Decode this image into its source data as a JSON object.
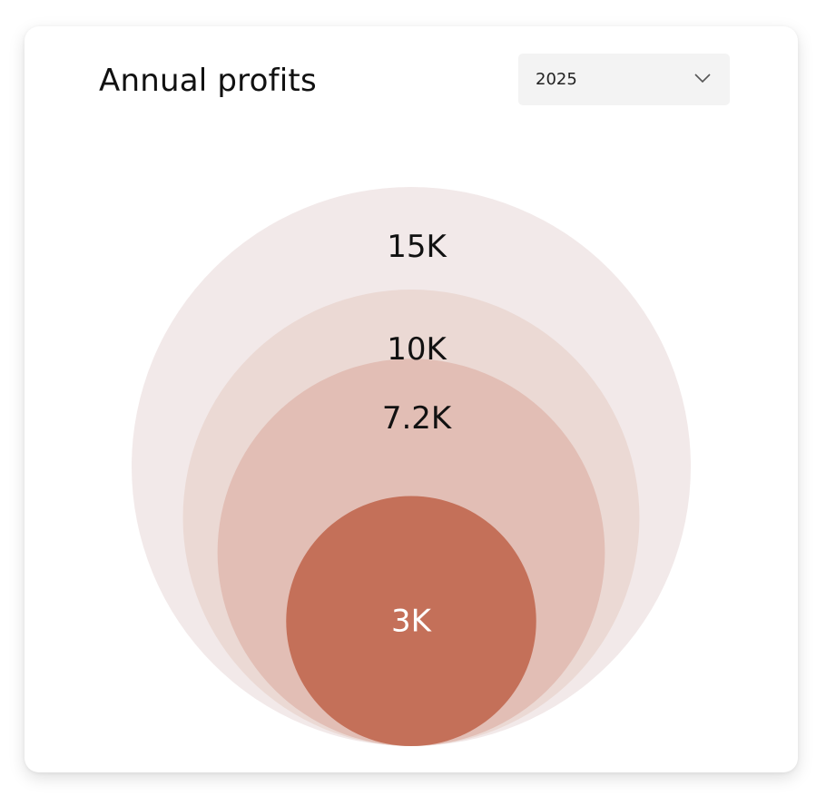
{
  "card": {
    "title": "Annual profits"
  },
  "year_select": {
    "value": "2025",
    "icon": "chevron-down-icon"
  },
  "chart_data": {
    "type": "nested-bubble",
    "title": "Annual profits",
    "values": [
      15000,
      10000,
      7200,
      3000
    ],
    "labels": [
      "15K",
      "10K",
      "7.2K",
      "3K"
    ],
    "colors": [
      "#f2e9e9",
      "#ebd9d4",
      "#e2beb5",
      "#c47059"
    ],
    "label_colors": [
      "#111111",
      "#111111",
      "#111111",
      "#ffffff"
    ]
  }
}
